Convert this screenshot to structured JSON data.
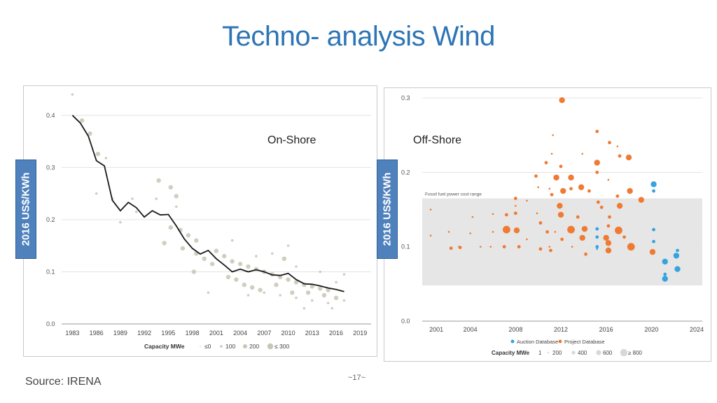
{
  "slide": {
    "title": "Techno- analysis Wind",
    "onshore_label": "On-Shore",
    "offshore_label": "Off-Shore",
    "ylabel_left": "2016 US$/KWh",
    "ylabel_right": "2016 US$/KWh",
    "source": "Source: IRENA",
    "page_number": "~17~"
  },
  "chart_data": [
    {
      "type": "scatter",
      "id": "onshore",
      "xlim": [
        1982,
        2019.5
      ],
      "ylim": [
        0,
        0.44
      ],
      "x_ticks": [
        "1983",
        "1986",
        "1989",
        "1992",
        "1995",
        "1998",
        "2001",
        "2004",
        "2007",
        "2010",
        "2013",
        "2016",
        "2019"
      ],
      "y_ticks": [
        "0.0",
        "0.1",
        "0.2",
        "0.3",
        "0.4"
      ],
      "grid": true,
      "xlabel_legend_title": "Capacity MWe",
      "size_legend": [
        "≤0",
        "100",
        "200",
        "≤ 300"
      ],
      "dot_color": "#c8c6b4",
      "line_color": "#1a1a1a",
      "trend_line": {
        "x": [
          1983,
          1984,
          1985,
          1986,
          1987,
          1988,
          1989,
          1990,
          1991,
          1992,
          1993,
          1994,
          1995,
          1996,
          1997,
          1998,
          1999,
          2000,
          2001,
          2002,
          2003,
          2004,
          2005,
          2006,
          2007,
          2008,
          2009,
          2010,
          2011,
          2012,
          2013,
          2014,
          2015,
          2016,
          2017
        ],
        "y": [
          0.4,
          0.385,
          0.36,
          0.313,
          0.303,
          0.237,
          0.217,
          0.233,
          0.223,
          0.205,
          0.217,
          0.209,
          0.21,
          0.188,
          0.163,
          0.145,
          0.134,
          0.141,
          0.125,
          0.113,
          0.1,
          0.105,
          0.1,
          0.104,
          0.1,
          0.094,
          0.093,
          0.097,
          0.085,
          0.077,
          0.076,
          0.073,
          0.069,
          0.066,
          0.062
        ]
      },
      "points": [
        {
          "x": 1983,
          "y": 0.44,
          "s": 1
        },
        {
          "x": 1984.2,
          "y": 0.39,
          "s": 2
        },
        {
          "x": 1985.2,
          "y": 0.365,
          "s": 2
        },
        {
          "x": 1986.2,
          "y": 0.326,
          "s": 2
        },
        {
          "x": 1987.2,
          "y": 0.318,
          "s": 1
        },
        {
          "x": 1988,
          "y": 0.24,
          "s": 1
        },
        {
          "x": 1990.5,
          "y": 0.24,
          "s": 1
        },
        {
          "x": 1993.5,
          "y": 0.24,
          "s": 1
        },
        {
          "x": 1993.8,
          "y": 0.275,
          "s": 2
        },
        {
          "x": 1995.3,
          "y": 0.262,
          "s": 2
        },
        {
          "x": 1996,
          "y": 0.245,
          "s": 2
        },
        {
          "x": 1995.3,
          "y": 0.185,
          "s": 2
        },
        {
          "x": 1996.5,
          "y": 0.18,
          "s": 2
        },
        {
          "x": 1997.5,
          "y": 0.17,
          "s": 2
        },
        {
          "x": 1998.5,
          "y": 0.16,
          "s": 2
        },
        {
          "x": 1994.5,
          "y": 0.155,
          "s": 2
        },
        {
          "x": 1996.8,
          "y": 0.145,
          "s": 2
        },
        {
          "x": 1998.5,
          "y": 0.135,
          "s": 2
        },
        {
          "x": 1999.5,
          "y": 0.125,
          "s": 2
        },
        {
          "x": 2000.5,
          "y": 0.115,
          "s": 2
        },
        {
          "x": 1998.2,
          "y": 0.1,
          "s": 2
        },
        {
          "x": 2001,
          "y": 0.14,
          "s": 2
        },
        {
          "x": 2002,
          "y": 0.13,
          "s": 2
        },
        {
          "x": 2003,
          "y": 0.12,
          "s": 2
        },
        {
          "x": 2004,
          "y": 0.115,
          "s": 2
        },
        {
          "x": 2005,
          "y": 0.11,
          "s": 2
        },
        {
          "x": 2006,
          "y": 0.105,
          "s": 2
        },
        {
          "x": 2007,
          "y": 0.1,
          "s": 2
        },
        {
          "x": 2008,
          "y": 0.095,
          "s": 2
        },
        {
          "x": 2009,
          "y": 0.09,
          "s": 2
        },
        {
          "x": 2010,
          "y": 0.085,
          "s": 2
        },
        {
          "x": 2011,
          "y": 0.08,
          "s": 2
        },
        {
          "x": 2012,
          "y": 0.075,
          "s": 2
        },
        {
          "x": 2013,
          "y": 0.072,
          "s": 2
        },
        {
          "x": 2014,
          "y": 0.068,
          "s": 2
        },
        {
          "x": 2015,
          "y": 0.065,
          "s": 2
        },
        {
          "x": 2002.5,
          "y": 0.09,
          "s": 2
        },
        {
          "x": 2003.5,
          "y": 0.085,
          "s": 2
        },
        {
          "x": 2004.5,
          "y": 0.075,
          "s": 2
        },
        {
          "x": 2005.5,
          "y": 0.07,
          "s": 2
        },
        {
          "x": 2006.5,
          "y": 0.065,
          "s": 2
        },
        {
          "x": 2008.5,
          "y": 0.075,
          "s": 2
        },
        {
          "x": 2010.5,
          "y": 0.06,
          "s": 2
        },
        {
          "x": 2012.5,
          "y": 0.06,
          "s": 2
        },
        {
          "x": 2014.5,
          "y": 0.055,
          "s": 2
        },
        {
          "x": 2016,
          "y": 0.05,
          "s": 2
        },
        {
          "x": 2017,
          "y": 0.045,
          "s": 1
        },
        {
          "x": 2017,
          "y": 0.095,
          "s": 1
        },
        {
          "x": 2009.5,
          "y": 0.125,
          "s": 2
        },
        {
          "x": 2008,
          "y": 0.135,
          "s": 1
        },
        {
          "x": 2010,
          "y": 0.15,
          "s": 1
        },
        {
          "x": 2007,
          "y": 0.06,
          "s": 1
        },
        {
          "x": 2009,
          "y": 0.055,
          "s": 1
        },
        {
          "x": 2011,
          "y": 0.05,
          "s": 1
        },
        {
          "x": 2013,
          "y": 0.045,
          "s": 1
        },
        {
          "x": 2015,
          "y": 0.04,
          "s": 1
        },
        {
          "x": 2000,
          "y": 0.06,
          "s": 1
        },
        {
          "x": 2005,
          "y": 0.055,
          "s": 1
        },
        {
          "x": 1986,
          "y": 0.25,
          "s": 1
        },
        {
          "x": 1989,
          "y": 0.195,
          "s": 1
        },
        {
          "x": 1991,
          "y": 0.215,
          "s": 1
        },
        {
          "x": 1996,
          "y": 0.225,
          "s": 1
        },
        {
          "x": 2003,
          "y": 0.16,
          "s": 1
        },
        {
          "x": 2006,
          "y": 0.13,
          "s": 1
        },
        {
          "x": 2011,
          "y": 0.11,
          "s": 1
        },
        {
          "x": 2014,
          "y": 0.1,
          "s": 1
        },
        {
          "x": 2016,
          "y": 0.08,
          "s": 1
        },
        {
          "x": 2015.5,
          "y": 0.03,
          "s": 1
        },
        {
          "x": 2012,
          "y": 0.03,
          "s": 1
        }
      ]
    },
    {
      "type": "scatter",
      "id": "offshore",
      "xlim": [
        2000,
        2024
      ],
      "ylim": [
        0,
        0.3
      ],
      "x_ticks": [
        "2001",
        "2004",
        "2008",
        "2012",
        "2016",
        "2020",
        "2024"
      ],
      "x_tick_values": [
        2001,
        2004,
        2008,
        2012,
        2016,
        2020,
        2024
      ],
      "y_ticks": [
        "0.0",
        "0.1",
        "0.2",
        "0.3"
      ],
      "grid": true,
      "band_label": "Fossil fuel power cost range",
      "band_range": [
        0.048,
        0.165
      ],
      "band_color": "#e6e6e6",
      "series": [
        {
          "name": "Auction Database",
          "color": "#37a3de"
        },
        {
          "name": "Project Database",
          "color": "#ef7b33"
        }
      ],
      "xlabel_legend_title": "Capacity MWe",
      "size_legend": [
        "1",
        "200",
        "400",
        "600",
        "≥ 800"
      ],
      "points": [
        {
          "x": 2012.1,
          "y": 0.297,
          "s": 3,
          "series": 1
        },
        {
          "x": 2011.3,
          "y": 0.25,
          "s": 1,
          "series": 1
        },
        {
          "x": 2015.2,
          "y": 0.255,
          "s": 2,
          "series": 1
        },
        {
          "x": 2016.3,
          "y": 0.24,
          "s": 2,
          "series": 1
        },
        {
          "x": 2017,
          "y": 0.235,
          "s": 1,
          "series": 1
        },
        {
          "x": 2017.2,
          "y": 0.222,
          "s": 2,
          "series": 1
        },
        {
          "x": 2018,
          "y": 0.22,
          "s": 3,
          "series": 1
        },
        {
          "x": 2015.2,
          "y": 0.213,
          "s": 3,
          "series": 1
        },
        {
          "x": 2010.7,
          "y": 0.213,
          "s": 2,
          "series": 1
        },
        {
          "x": 2015.2,
          "y": 0.2,
          "s": 2,
          "series": 1
        },
        {
          "x": 2012,
          "y": 0.208,
          "s": 2,
          "series": 1
        },
        {
          "x": 2012.9,
          "y": 0.193,
          "s": 3,
          "series": 1
        },
        {
          "x": 2011.6,
          "y": 0.193,
          "s": 3,
          "series": 1
        },
        {
          "x": 2009.8,
          "y": 0.195,
          "s": 2,
          "series": 1
        },
        {
          "x": 2013.8,
          "y": 0.18,
          "s": 3,
          "series": 1
        },
        {
          "x": 2012.9,
          "y": 0.178,
          "s": 2,
          "series": 1
        },
        {
          "x": 2016.2,
          "y": 0.19,
          "s": 1,
          "series": 1
        },
        {
          "x": 2010,
          "y": 0.18,
          "s": 1,
          "series": 1
        },
        {
          "x": 2011,
          "y": 0.178,
          "s": 1,
          "series": 1
        },
        {
          "x": 2018.1,
          "y": 0.175,
          "s": 3,
          "series": 1
        },
        {
          "x": 2012.2,
          "y": 0.175,
          "s": 3,
          "series": 1
        },
        {
          "x": 2011.2,
          "y": 0.17,
          "s": 2,
          "series": 1
        },
        {
          "x": 2014.5,
          "y": 0.175,
          "s": 2,
          "series": 1
        },
        {
          "x": 2017,
          "y": 0.168,
          "s": 2,
          "series": 1
        },
        {
          "x": 2019.1,
          "y": 0.163,
          "s": 3,
          "series": 1
        },
        {
          "x": 2008,
          "y": 0.165,
          "s": 2,
          "series": 1
        },
        {
          "x": 2009,
          "y": 0.162,
          "s": 1,
          "series": 1
        },
        {
          "x": 2015.3,
          "y": 0.16,
          "s": 2,
          "series": 1
        },
        {
          "x": 2011.9,
          "y": 0.155,
          "s": 3,
          "series": 1
        },
        {
          "x": 2015.6,
          "y": 0.153,
          "s": 2,
          "series": 1
        },
        {
          "x": 2017.2,
          "y": 0.155,
          "s": 3,
          "series": 1
        },
        {
          "x": 2008,
          "y": 0.145,
          "s": 2,
          "series": 1
        },
        {
          "x": 2007.2,
          "y": 0.143,
          "s": 2,
          "series": 1
        },
        {
          "x": 2006,
          "y": 0.144,
          "s": 1,
          "series": 1
        },
        {
          "x": 2009.9,
          "y": 0.145,
          "s": 1,
          "series": 1
        },
        {
          "x": 2012,
          "y": 0.143,
          "s": 3,
          "series": 1
        },
        {
          "x": 2013.5,
          "y": 0.14,
          "s": 2,
          "series": 1
        },
        {
          "x": 2016.3,
          "y": 0.14,
          "s": 2,
          "series": 1
        },
        {
          "x": 2010.2,
          "y": 0.132,
          "s": 2,
          "series": 1
        },
        {
          "x": 2004.2,
          "y": 0.14,
          "s": 1,
          "series": 1
        },
        {
          "x": 2007.2,
          "y": 0.123,
          "s": 4,
          "series": 1
        },
        {
          "x": 2008.1,
          "y": 0.122,
          "s": 3,
          "series": 1
        },
        {
          "x": 2010.8,
          "y": 0.12,
          "s": 2,
          "series": 1
        },
        {
          "x": 2011.5,
          "y": 0.12,
          "s": 1,
          "series": 1
        },
        {
          "x": 2012.9,
          "y": 0.123,
          "s": 4,
          "series": 1
        },
        {
          "x": 2014.1,
          "y": 0.124,
          "s": 3,
          "series": 1
        },
        {
          "x": 2016.2,
          "y": 0.128,
          "s": 2,
          "series": 1
        },
        {
          "x": 2017.1,
          "y": 0.122,
          "s": 4,
          "series": 1
        },
        {
          "x": 2012.1,
          "y": 0.11,
          "s": 2,
          "series": 1
        },
        {
          "x": 2013.9,
          "y": 0.112,
          "s": 3,
          "series": 1
        },
        {
          "x": 2016,
          "y": 0.112,
          "s": 3,
          "series": 1
        },
        {
          "x": 2017.6,
          "y": 0.113,
          "s": 2,
          "series": 1
        },
        {
          "x": 2009,
          "y": 0.11,
          "s": 1,
          "series": 1
        },
        {
          "x": 2011,
          "y": 0.1,
          "s": 1,
          "series": 1
        },
        {
          "x": 2013,
          "y": 0.1,
          "s": 1,
          "series": 1
        },
        {
          "x": 2007,
          "y": 0.1,
          "s": 2,
          "series": 1
        },
        {
          "x": 2008.3,
          "y": 0.1,
          "s": 2,
          "series": 1
        },
        {
          "x": 2005.8,
          "y": 0.1,
          "s": 1,
          "series": 1
        },
        {
          "x": 2003,
          "y": 0.1,
          "s": 1,
          "series": 1
        },
        {
          "x": 2004.9,
          "y": 0.1,
          "s": 1,
          "series": 1
        },
        {
          "x": 2002.3,
          "y": 0.098,
          "s": 2,
          "series": 1
        },
        {
          "x": 2003.1,
          "y": 0.099,
          "s": 2,
          "series": 1
        },
        {
          "x": 2010.2,
          "y": 0.097,
          "s": 2,
          "series": 1
        },
        {
          "x": 2011.1,
          "y": 0.095,
          "s": 2,
          "series": 1
        },
        {
          "x": 2014.2,
          "y": 0.09,
          "s": 2,
          "series": 1
        },
        {
          "x": 2016.2,
          "y": 0.095,
          "s": 3,
          "series": 1
        },
        {
          "x": 2018.2,
          "y": 0.1,
          "s": 4,
          "series": 1
        },
        {
          "x": 2020.1,
          "y": 0.093,
          "s": 3,
          "series": 1
        },
        {
          "x": 2016.2,
          "y": 0.105,
          "s": 3,
          "series": 1
        },
        {
          "x": 2002.1,
          "y": 0.12,
          "s": 1,
          "series": 1
        },
        {
          "x": 2004,
          "y": 0.118,
          "s": 1,
          "series": 1
        },
        {
          "x": 2006,
          "y": 0.12,
          "s": 1,
          "series": 1
        },
        {
          "x": 2015.2,
          "y": 0.113,
          "s": 2,
          "series": 0
        },
        {
          "x": 2015.2,
          "y": 0.124,
          "s": 2,
          "series": 0
        },
        {
          "x": 2015.2,
          "y": 0.1,
          "s": 2,
          "series": 0
        },
        {
          "x": 2015.2,
          "y": 0.097,
          "s": 1,
          "series": 0
        },
        {
          "x": 2020.2,
          "y": 0.184,
          "s": 3,
          "series": 0
        },
        {
          "x": 2020.2,
          "y": 0.175,
          "s": 2,
          "series": 0
        },
        {
          "x": 2020.2,
          "y": 0.123,
          "s": 2,
          "series": 0
        },
        {
          "x": 2020.2,
          "y": 0.107,
          "s": 2,
          "series": 0
        },
        {
          "x": 2021.2,
          "y": 0.08,
          "s": 3,
          "series": 0
        },
        {
          "x": 2021.2,
          "y": 0.063,
          "s": 2,
          "series": 0
        },
        {
          "x": 2021.2,
          "y": 0.057,
          "s": 3,
          "series": 0
        },
        {
          "x": 2022.2,
          "y": 0.088,
          "s": 3,
          "series": 0
        },
        {
          "x": 2022.3,
          "y": 0.095,
          "s": 2,
          "series": 0
        },
        {
          "x": 2022.3,
          "y": 0.07,
          "s": 3,
          "series": 0
        },
        {
          "x": 2000.5,
          "y": 0.15,
          "s": 1,
          "series": 1
        },
        {
          "x": 2000.5,
          "y": 0.115,
          "s": 1,
          "series": 1
        },
        {
          "x": 2011.2,
          "y": 0.225,
          "s": 1,
          "series": 1
        },
        {
          "x": 2013.9,
          "y": 0.225,
          "s": 1,
          "series": 1
        },
        {
          "x": 2008,
          "y": 0.155,
          "s": 1,
          "series": 1
        }
      ]
    }
  ]
}
